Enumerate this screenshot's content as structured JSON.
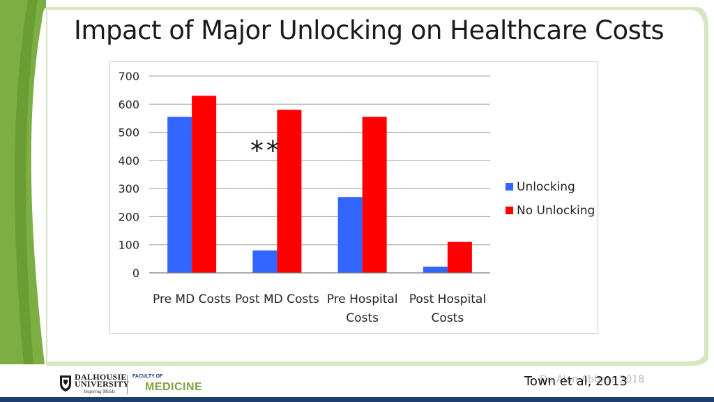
{
  "slide": {
    "title": "Impact of Major Unlocking on Healthcare Costs",
    "citation": "Town et al, 2013",
    "watermark": "Dr. Alan Abbass 2018",
    "logo": {
      "university_line1": "DALHOUSIE",
      "university_line2": "UNIVERSITY",
      "tagline": "Inspiring Minds",
      "faculty_of": "FACULTY OF",
      "faculty_name": "MEDICINE"
    },
    "colors": {
      "frame_green": "#7cae44",
      "frame_light": "#d6e6c0",
      "bottom_bar": "#1e3f6d"
    }
  },
  "chart_data": {
    "type": "bar",
    "title": "",
    "xlabel": "",
    "ylabel": "",
    "categories": [
      "Pre MD Costs",
      "Post MD Costs",
      "Pre Hospital Costs",
      "Post Hospital Costs"
    ],
    "category_lines": [
      [
        "Pre MD Costs"
      ],
      [
        "Post MD Costs"
      ],
      [
        "Pre Hospital",
        "Costs"
      ],
      [
        "Post Hospital",
        "Costs"
      ]
    ],
    "series": [
      {
        "name": "Unlocking",
        "color": "#3366ff",
        "values": [
          555,
          80,
          270,
          22
        ]
      },
      {
        "name": "No Unlocking",
        "color": "#ff0000",
        "values": [
          630,
          580,
          555,
          110
        ]
      }
    ],
    "ylim": [
      0,
      700
    ],
    "yticks": [
      0,
      100,
      200,
      300,
      400,
      500,
      600,
      700
    ],
    "grid": true,
    "legend_position": "right",
    "annotation": {
      "text": "**",
      "category": "Post MD Costs"
    }
  }
}
